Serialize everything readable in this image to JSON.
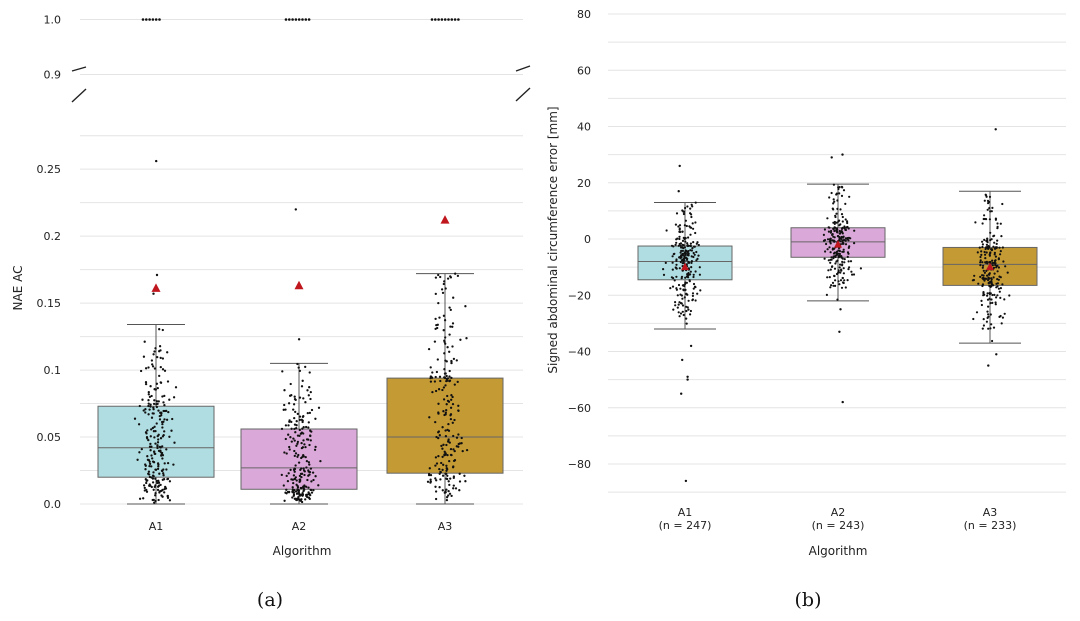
{
  "chart_data": [
    {
      "panel_label": "(a)",
      "type": "box",
      "ylabel": "NAE AC",
      "xlabel": "Algorithm",
      "ylim_lower": [
        0.0,
        0.28
      ],
      "ylim_upper": [
        0.89,
        1.01
      ],
      "broken_axis": true,
      "upper_ticks": [
        1.0,
        0.9
      ],
      "upper_tick_labels": [
        "1.0",
        "0.9"
      ],
      "yticks": [
        0.0,
        0.05,
        0.1,
        0.15,
        0.2,
        0.25
      ],
      "ytick_labels": [
        "0.0",
        "0.05",
        "0.1",
        "0.15",
        "0.2",
        "0.25"
      ],
      "categories": [
        "A1",
        "A2",
        "A3"
      ],
      "colors": [
        "#b0dde1",
        "#dba9d9",
        "#c49a35"
      ],
      "boxes": [
        {
          "name": "A1",
          "q1": 0.02,
          "median": 0.042,
          "q3": 0.073,
          "whisker_low": 0.0,
          "whisker_high": 0.134,
          "mean": 0.161,
          "outliers": [
            0.157,
            0.171,
            0.256
          ],
          "at_one": 6
        },
        {
          "name": "A2",
          "q1": 0.011,
          "median": 0.027,
          "q3": 0.056,
          "whisker_low": 0.0,
          "whisker_high": 0.105,
          "mean": 0.163,
          "outliers": [
            0.123,
            0.22
          ],
          "at_one": 8
        },
        {
          "name": "A3",
          "q1": 0.023,
          "median": 0.05,
          "q3": 0.094,
          "whisker_low": 0.0,
          "whisker_high": 0.172,
          "mean": 0.212,
          "outliers": [],
          "at_one": 9
        }
      ],
      "n_points": [
        247,
        243,
        233
      ]
    },
    {
      "panel_label": "(b)",
      "type": "box",
      "ylabel": "Signed abdominal circumference error [mm]",
      "xlabel": "Algorithm",
      "ylim": [
        -94,
        82
      ],
      "yticks": [
        80,
        60,
        40,
        20,
        0,
        -20,
        -40,
        -60,
        -80
      ],
      "ytick_labels": [
        "80",
        "60",
        "40",
        "20",
        "0",
        "−20",
        "−40",
        "−60",
        "−80"
      ],
      "categories": [
        "A1",
        "A2",
        "A3"
      ],
      "category_sublabels": [
        "(n = 247)",
        "(n = 243)",
        "(n = 233)"
      ],
      "colors": [
        "#b0dde1",
        "#dba9d9",
        "#c49a35"
      ],
      "boxes": [
        {
          "name": "A1",
          "q1": -14.5,
          "median": -8,
          "q3": -2.5,
          "whisker_low": -32,
          "whisker_high": 13,
          "mean": -10,
          "outliers": [
            -38,
            -43,
            -49,
            -50,
            -55,
            -86,
            17,
            26
          ]
        },
        {
          "name": "A2",
          "q1": -6.5,
          "median": -1,
          "q3": 4,
          "whisker_low": -22,
          "whisker_high": 19.5,
          "mean": -2,
          "outliers": [
            -25,
            -33,
            -58,
            29,
            30
          ]
        },
        {
          "name": "A3",
          "q1": -16.5,
          "median": -9,
          "q3": -3,
          "whisker_low": -37,
          "whisker_high": 17,
          "mean": -10,
          "outliers": [
            -41,
            -45,
            39
          ]
        }
      ],
      "n_points": [
        247,
        243,
        233
      ]
    }
  ]
}
